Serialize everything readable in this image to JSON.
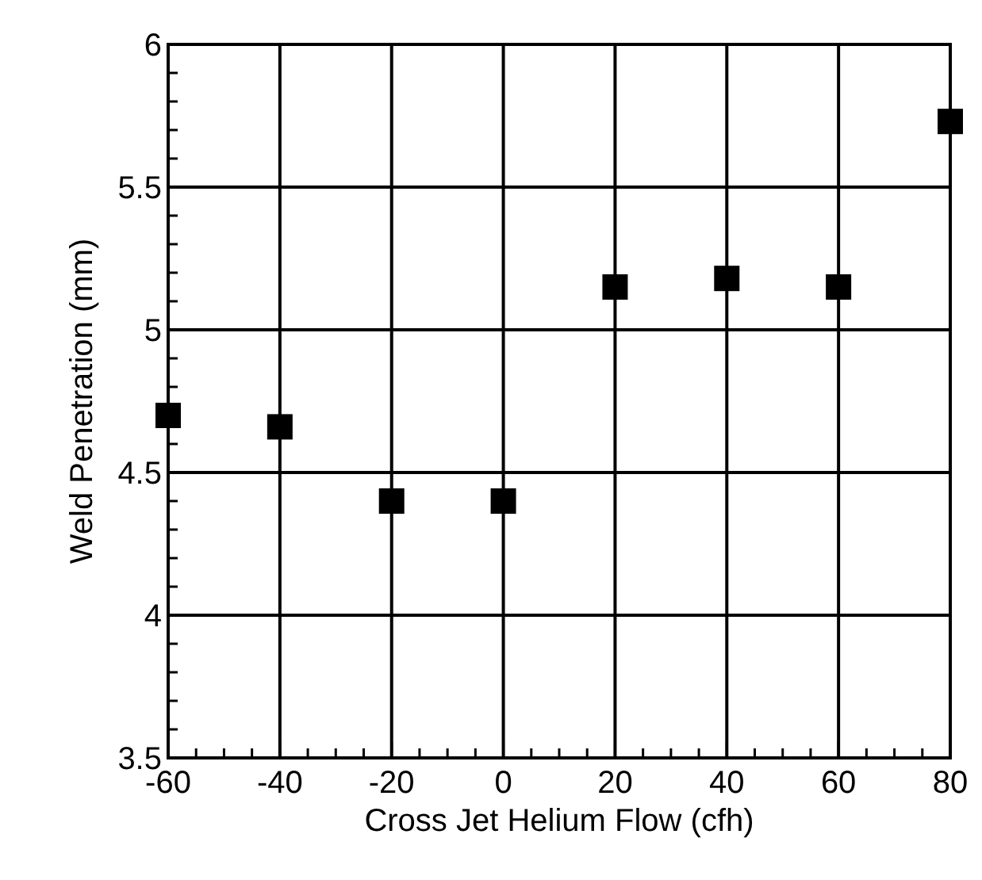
{
  "chart_data": {
    "type": "scatter",
    "xlabel": "Cross Jet Helium Flow (cfh)",
    "ylabel": "Weld Penetration (mm)",
    "x": [
      -60,
      -40,
      -20,
      0,
      20,
      40,
      60,
      80
    ],
    "series": [
      {
        "color": "#000000",
        "values": [
          4.7,
          4.66,
          4.4,
          4.4,
          5.15,
          5.18,
          5.15,
          5.73
        ]
      }
    ],
    "marker": "square",
    "grid": true,
    "xlim": [
      -60,
      80
    ],
    "ylim": [
      3.5,
      6
    ],
    "xticks": [
      -60,
      {
        "value": -55,
        "label": null
      },
      {
        "value": -50,
        "label": null
      },
      {
        "value": -45,
        "label": null
      },
      -40,
      {
        "value": -35,
        "label": null
      },
      {
        "value": -30,
        "label": null
      },
      {
        "value": -25,
        "label": null
      },
      -20,
      {
        "value": -15,
        "label": null
      },
      {
        "value": -10,
        "label": null
      },
      {
        "value": -5,
        "label": null
      },
      0,
      {
        "value": 5,
        "label": null
      },
      {
        "value": 10,
        "label": null
      },
      {
        "value": 15,
        "label": null
      },
      20,
      {
        "value": 25,
        "label": null
      },
      {
        "value": 30,
        "label": null
      },
      {
        "value": 35,
        "label": null
      },
      40,
      {
        "value": 45,
        "label": null
      },
      {
        "value": 50,
        "label": null
      },
      {
        "value": 55,
        "label": null
      },
      60,
      {
        "value": 65,
        "label": null
      },
      {
        "value": 70,
        "label": null
      },
      {
        "value": 75,
        "label": null
      },
      80
    ],
    "yticks": [
      3.5,
      {
        "value": 3.6,
        "label": null
      },
      {
        "value": 3.7,
        "label": null
      },
      {
        "value": 3.8,
        "label": null
      },
      {
        "value": 3.9,
        "label": null
      },
      4,
      {
        "value": 4.1,
        "label": null
      },
      {
        "value": 4.2,
        "label": null
      },
      {
        "value": 4.3,
        "label": null
      },
      {
        "value": 4.4,
        "label": null
      },
      4.5,
      {
        "value": 4.6,
        "label": null
      },
      {
        "value": 4.7,
        "label": null
      },
      {
        "value": 4.8,
        "label": null
      },
      {
        "value": 4.9,
        "label": null
      },
      5,
      {
        "value": 5.1,
        "label": null
      },
      {
        "value": 5.2,
        "label": null
      },
      {
        "value": 5.3,
        "label": null
      },
      {
        "value": 5.4,
        "label": null
      },
      5.5,
      {
        "value": 5.6,
        "label": null
      },
      {
        "value": 5.7,
        "label": null
      },
      {
        "value": 5.8,
        "label": null
      },
      {
        "value": 5.9,
        "label": null
      },
      6
    ]
  }
}
